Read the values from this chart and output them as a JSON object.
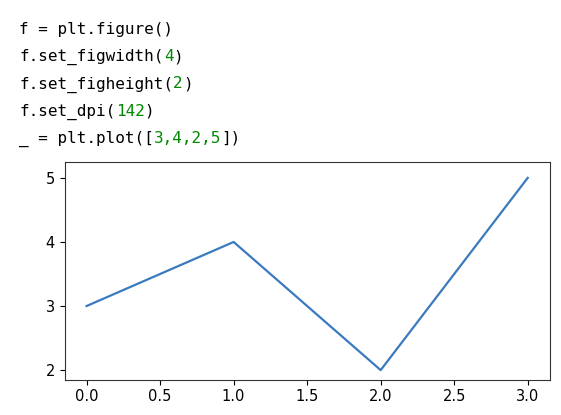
{
  "code_lines": [
    [
      {
        "t": "f = plt.figure()",
        "color": "#000000"
      }
    ],
    [
      {
        "t": "f.set_figwidth(",
        "color": "#000000"
      },
      {
        "t": "4",
        "color": "#008800"
      },
      {
        "t": ")",
        "color": "#000000"
      }
    ],
    [
      {
        "t": "f.set_figheight(",
        "color": "#000000"
      },
      {
        "t": "2",
        "color": "#008800"
      },
      {
        "t": ")",
        "color": "#000000"
      }
    ],
    [
      {
        "t": "f.set_dpi(",
        "color": "#000000"
      },
      {
        "t": "142",
        "color": "#008800"
      },
      {
        "t": ")",
        "color": "#000000"
      }
    ],
    [
      {
        "t": "_ = plt.plot([",
        "color": "#000000"
      },
      {
        "t": "3,4,2,5",
        "color": "#008800"
      },
      {
        "t": "])",
        "color": "#000000"
      }
    ]
  ],
  "code_bg": "#f2f2f2",
  "code_border": "#cccccc",
  "outer_bg": "#ffffff",
  "plot_bg": "#ffffff",
  "line_color": "#3a7abf",
  "x_data": [
    0,
    1,
    2,
    3
  ],
  "y_data": [
    3,
    4,
    2,
    5
  ],
  "ylim": [
    1.85,
    5.25
  ],
  "xlim": [
    -0.15,
    3.15
  ],
  "yticks": [
    2,
    3,
    4,
    5
  ],
  "xticks": [
    0.0,
    0.5,
    1.0,
    1.5,
    2.0,
    2.5,
    3.0
  ],
  "code_fontsize": 11.5,
  "tick_fontsize": 10.5,
  "line_width": 1.6
}
